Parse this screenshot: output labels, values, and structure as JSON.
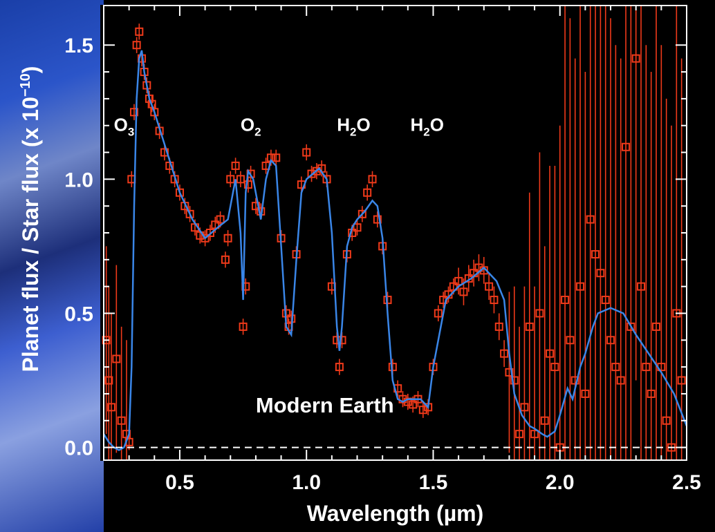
{
  "chart_data": {
    "type": "line",
    "xlabel": "Wavelength (µm)",
    "ylabel_main": "Planet flux / Star flux",
    "ylabel_unit": "(x 10",
    "ylabel_exp": "−10",
    "ylabel_close": ")",
    "xlim": [
      0.2,
      2.5
    ],
    "ylim": [
      -0.05,
      1.65
    ],
    "x_ticks": [
      0.5,
      1.0,
      1.5,
      2.0,
      2.5
    ],
    "x_tick_labels": [
      "0.5",
      "1.0",
      "1.5",
      "2.0",
      "2.5"
    ],
    "y_ticks": [
      0.0,
      0.5,
      1.0,
      1.5
    ],
    "y_tick_labels": [
      "0.0",
      "0.5",
      "1.0",
      "1.5"
    ],
    "reference_line": 0.0,
    "annotations": [
      {
        "base": "O",
        "sub": "3",
        "x": 0.24,
        "y": 1.18
      },
      {
        "base": "O",
        "sub": "2",
        "x": 0.74,
        "y": 1.18
      },
      {
        "base": "H",
        "sub": "2",
        "tail": "O",
        "x": 1.12,
        "y": 1.18
      },
      {
        "base": "H",
        "sub": "2",
        "tail": "O",
        "x": 1.41,
        "y": 1.18
      }
    ],
    "label": {
      "text": "Modern Earth",
      "x": 0.8,
      "y": 0.13
    },
    "series": [
      {
        "color": "#3a86e8",
        "x": [
          0.2,
          0.22,
          0.24,
          0.26,
          0.28,
          0.3,
          0.31,
          0.32,
          0.33,
          0.34,
          0.35,
          0.36,
          0.38,
          0.4,
          0.45,
          0.5,
          0.55,
          0.6,
          0.65,
          0.69,
          0.72,
          0.74,
          0.75,
          0.76,
          0.77,
          0.79,
          0.82,
          0.84,
          0.86,
          0.88,
          0.9,
          0.92,
          0.94,
          0.96,
          0.98,
          1.0,
          1.05,
          1.08,
          1.1,
          1.12,
          1.13,
          1.14,
          1.16,
          1.18,
          1.2,
          1.23,
          1.26,
          1.28,
          1.3,
          1.32,
          1.34,
          1.36,
          1.38,
          1.4,
          1.45,
          1.48,
          1.5,
          1.55,
          1.6,
          1.65,
          1.7,
          1.75,
          1.78,
          1.8,
          1.82,
          1.85,
          1.88,
          1.9,
          1.93,
          1.95,
          1.98,
          2.0,
          2.03,
          2.05,
          2.08,
          2.1,
          2.13,
          2.15,
          2.2,
          2.25,
          2.3,
          2.35,
          2.4,
          2.45,
          2.5
        ],
        "y": [
          0.05,
          0.02,
          0.0,
          -0.01,
          0.0,
          0.05,
          0.3,
          0.9,
          1.3,
          1.45,
          1.48,
          1.4,
          1.3,
          1.25,
          1.1,
          0.95,
          0.85,
          0.78,
          0.82,
          0.85,
          1.0,
          0.8,
          0.55,
          0.95,
          1.03,
          1.0,
          0.85,
          1.0,
          1.07,
          1.05,
          0.75,
          0.45,
          0.42,
          0.7,
          0.95,
          1.0,
          1.04,
          1.0,
          0.8,
          0.45,
          0.36,
          0.45,
          0.75,
          0.82,
          0.85,
          0.88,
          0.92,
          0.9,
          0.78,
          0.5,
          0.25,
          0.18,
          0.17,
          0.18,
          0.18,
          0.15,
          0.3,
          0.55,
          0.6,
          0.63,
          0.67,
          0.62,
          0.55,
          0.35,
          0.2,
          0.12,
          0.08,
          0.07,
          0.05,
          0.04,
          0.06,
          0.12,
          0.22,
          0.18,
          0.3,
          0.35,
          0.45,
          0.5,
          0.52,
          0.5,
          0.42,
          0.35,
          0.28,
          0.2,
          0.08
        ]
      },
      {
        "color": "#f03a1a",
        "marker": "square",
        "x": [
          0.21,
          0.22,
          0.23,
          0.25,
          0.27,
          0.29,
          0.3,
          0.31,
          0.32,
          0.33,
          0.34,
          0.35,
          0.36,
          0.37,
          0.38,
          0.39,
          0.4,
          0.42,
          0.44,
          0.46,
          0.48,
          0.5,
          0.52,
          0.54,
          0.56,
          0.58,
          0.6,
          0.62,
          0.64,
          0.66,
          0.68,
          0.69,
          0.7,
          0.72,
          0.74,
          0.75,
          0.76,
          0.77,
          0.78,
          0.8,
          0.82,
          0.84,
          0.86,
          0.88,
          0.9,
          0.92,
          0.93,
          0.94,
          0.96,
          0.98,
          1.0,
          1.02,
          1.04,
          1.06,
          1.08,
          1.1,
          1.12,
          1.13,
          1.14,
          1.16,
          1.18,
          1.2,
          1.22,
          1.24,
          1.26,
          1.28,
          1.3,
          1.32,
          1.34,
          1.36,
          1.38,
          1.4,
          1.42,
          1.44,
          1.46,
          1.48,
          1.5,
          1.52,
          1.54,
          1.56,
          1.58,
          1.6,
          1.62,
          1.64,
          1.66,
          1.68,
          1.7,
          1.72,
          1.74,
          1.76,
          1.78,
          1.8,
          1.82,
          1.84,
          1.86,
          1.88,
          1.9,
          1.92,
          1.94,
          1.96,
          1.98,
          2.0,
          2.02,
          2.04,
          2.06,
          2.08,
          2.1,
          2.12,
          2.14,
          2.16,
          2.18,
          2.2,
          2.22,
          2.24,
          2.26,
          2.28,
          2.3,
          2.32,
          2.34,
          2.36,
          2.38,
          2.4,
          2.42,
          2.44,
          2.46,
          2.48
        ],
        "y": [
          0.4,
          0.25,
          0.15,
          0.33,
          0.1,
          0.05,
          0.02,
          1.0,
          1.25,
          1.5,
          1.55,
          1.45,
          1.4,
          1.35,
          1.3,
          1.28,
          1.25,
          1.18,
          1.1,
          1.05,
          1.0,
          0.95,
          0.9,
          0.87,
          0.82,
          0.79,
          0.78,
          0.8,
          0.83,
          0.85,
          0.7,
          0.78,
          1.0,
          1.05,
          1.0,
          0.45,
          0.6,
          0.98,
          1.02,
          0.9,
          0.88,
          1.05,
          1.08,
          1.08,
          0.78,
          0.5,
          0.45,
          0.48,
          0.72,
          0.98,
          1.1,
          1.02,
          1.03,
          1.04,
          1.0,
          0.6,
          0.4,
          0.3,
          0.4,
          0.72,
          0.8,
          0.82,
          0.87,
          0.95,
          1.0,
          0.85,
          0.75,
          0.55,
          0.3,
          0.22,
          0.18,
          0.17,
          0.16,
          0.18,
          0.14,
          0.15,
          0.3,
          0.5,
          0.55,
          0.57,
          0.6,
          0.62,
          0.58,
          0.63,
          0.65,
          0.67,
          0.66,
          0.6,
          0.55,
          0.45,
          0.35,
          0.28,
          0.25,
          0.05,
          0.15,
          0.45,
          0.05,
          0.5,
          0.1,
          0.35,
          0.3,
          0.0,
          0.55,
          0.4,
          0.25,
          0.6,
          0.2,
          0.85,
          0.72,
          0.65,
          0.55,
          0.4,
          0.3,
          0.25,
          1.12,
          0.45,
          1.45,
          0.6,
          0.3,
          0.2,
          0.45,
          0.3,
          0.1,
          0.0,
          0.5,
          0.25
        ]
      }
    ]
  }
}
